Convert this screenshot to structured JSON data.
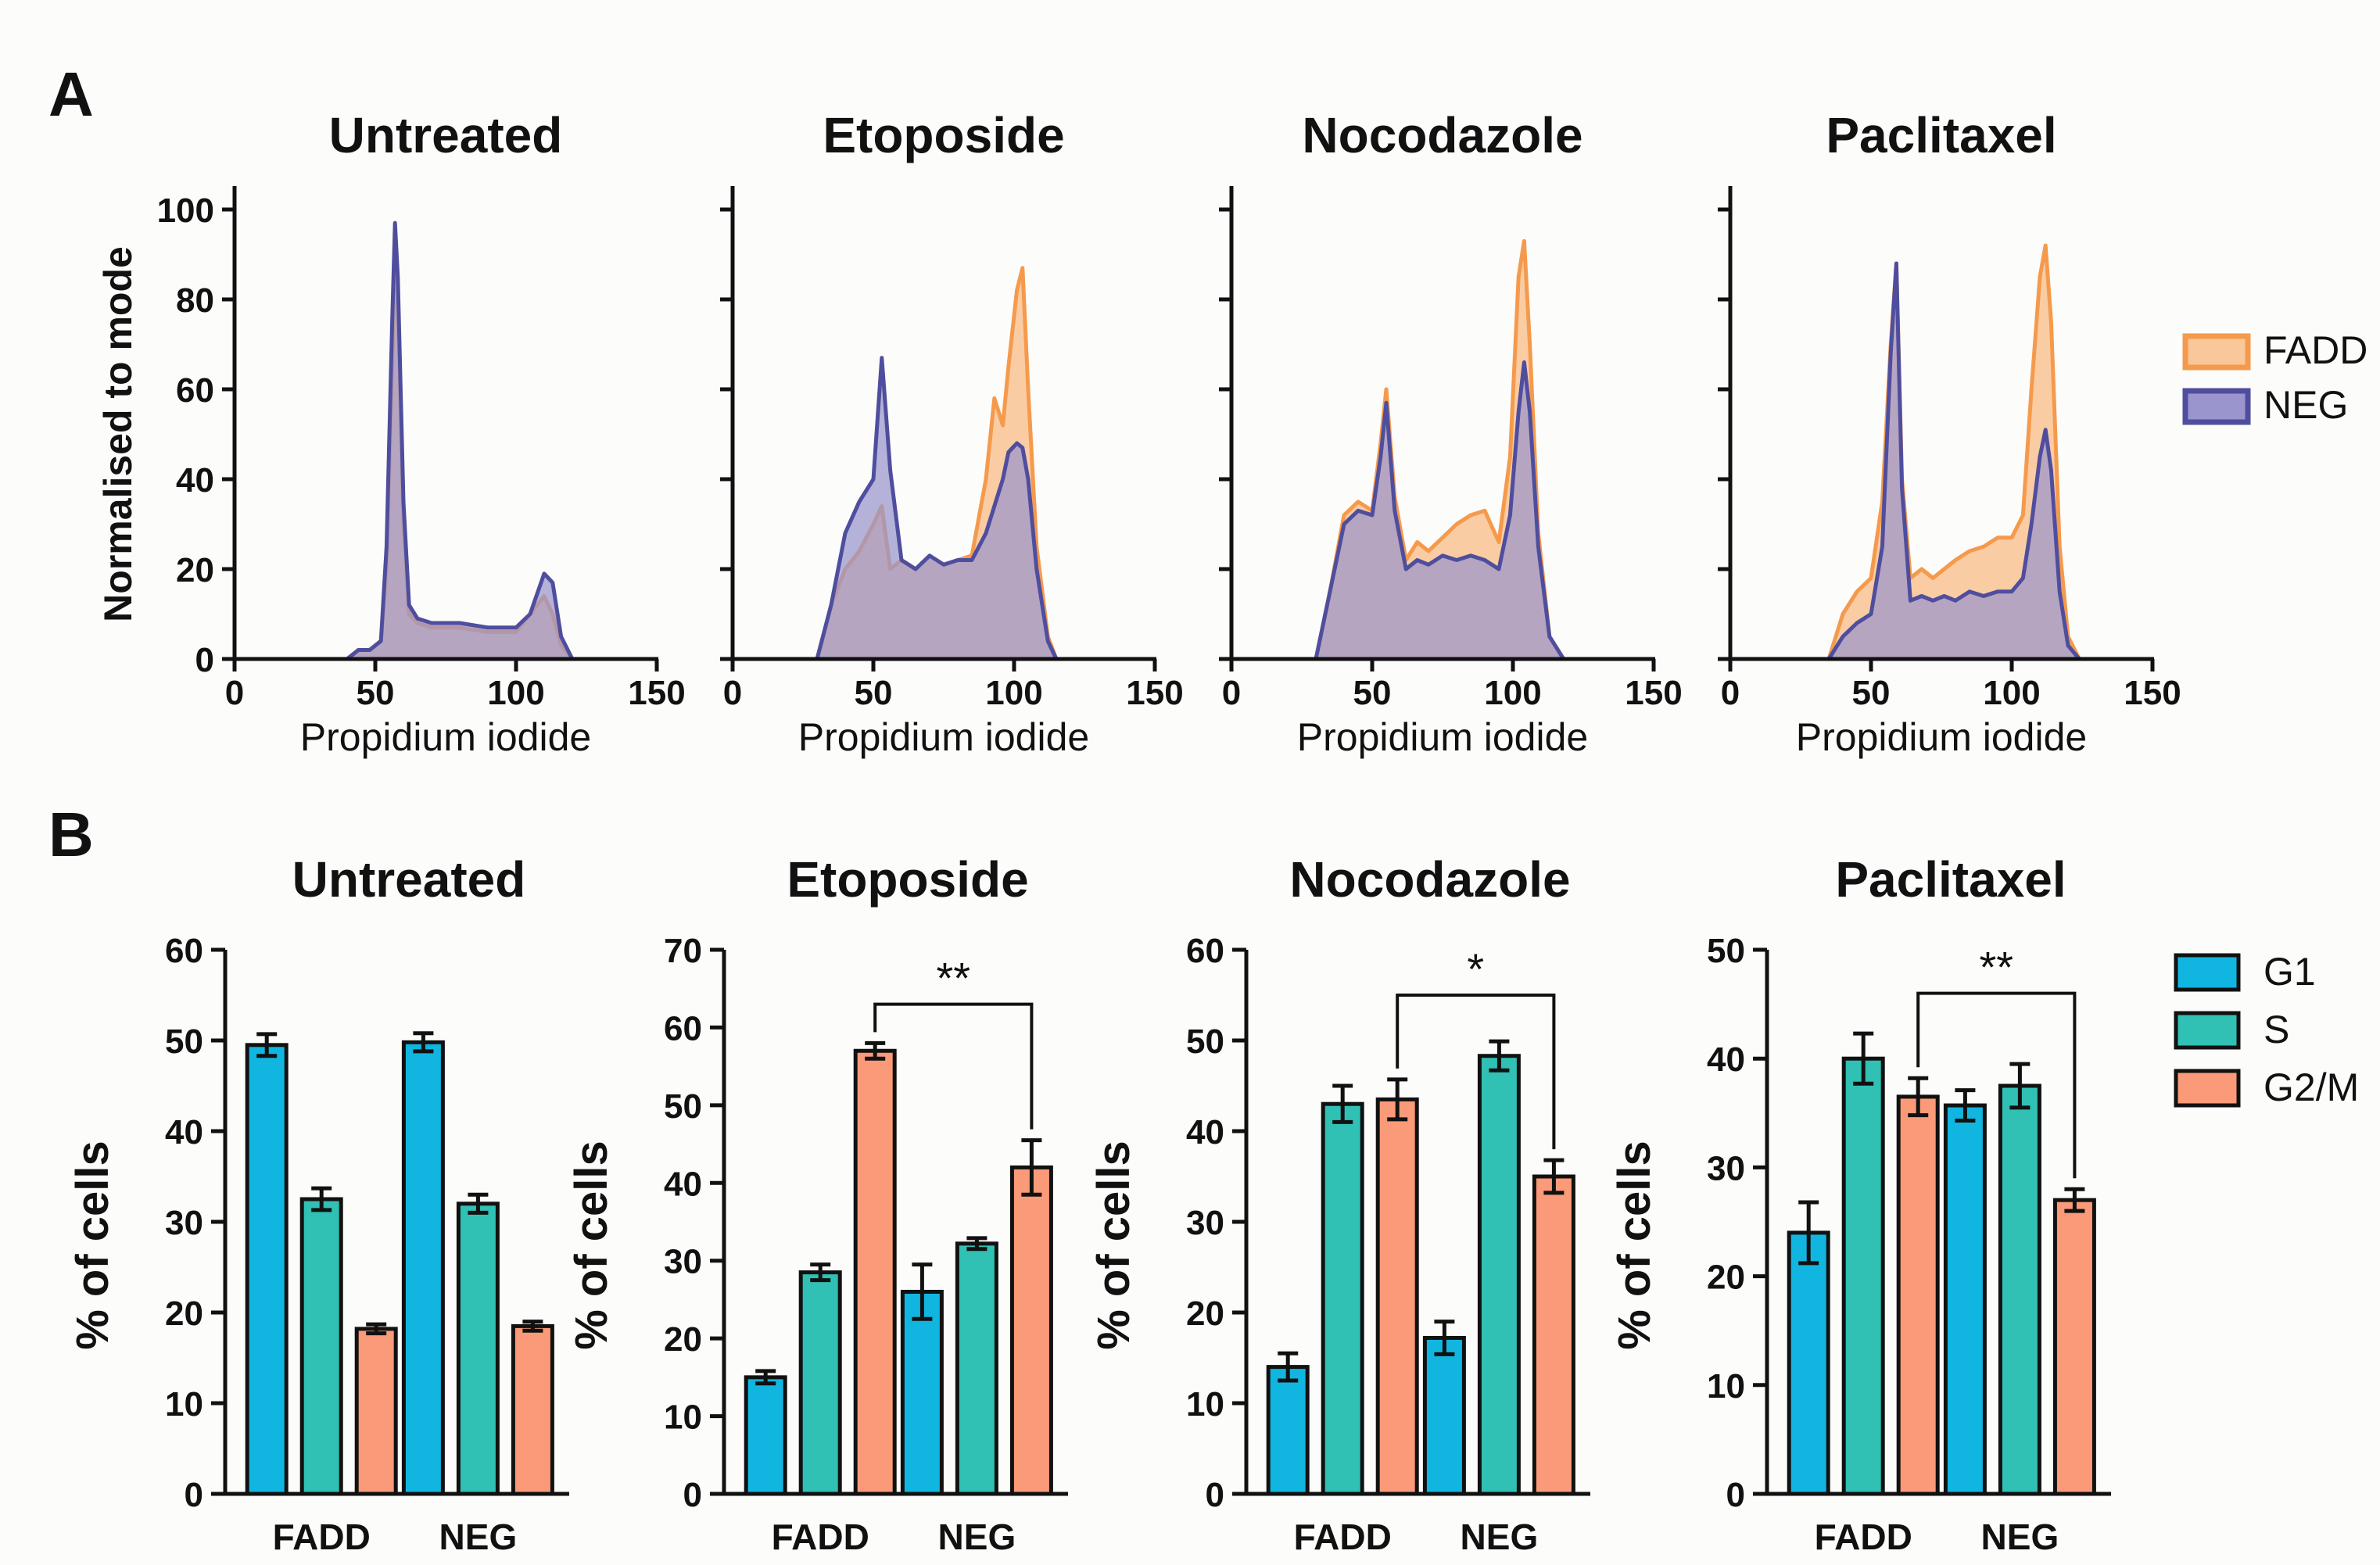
{
  "panel_labels": [
    "A",
    "B"
  ],
  "legend_a": [
    {
      "name": "FADD",
      "fill": "#f9c79a",
      "stroke": "#f59a4c"
    },
    {
      "name": "NEG",
      "fill": "#9a95cc",
      "stroke": "#4f4e9e"
    }
  ],
  "legend_b": [
    {
      "name": "G1",
      "color": "#10b6e0"
    },
    {
      "name": "S",
      "color": "#30c0b4"
    },
    {
      "name": "G2/M",
      "color": "#fa9a78"
    }
  ],
  "colors": {
    "fadd_fill": "#f9c79a",
    "fadd_line": "#f59a4c",
    "neg_fill": "#9a95cc",
    "neg_line": "#4f4e9e",
    "axis": "#111111"
  },
  "chart_data": [
    {
      "type": "area",
      "panel": "A",
      "title": "Untreated",
      "xlabel": "Propidium iodide",
      "ylabel": "Normalised to mode",
      "xlim": [
        0,
        150
      ],
      "ylim": [
        0,
        100
      ],
      "xticks": [
        0,
        50,
        100,
        150
      ],
      "yticks": [
        0,
        20,
        40,
        60,
        80,
        100
      ],
      "series": [
        {
          "name": "FADD",
          "x": [
            40,
            44,
            48,
            52,
            54,
            56,
            57,
            58,
            60,
            62,
            65,
            70,
            80,
            90,
            100,
            105,
            110,
            113,
            116,
            120
          ],
          "y": [
            0,
            2,
            2,
            4,
            20,
            65,
            88,
            80,
            30,
            10,
            8,
            7,
            7,
            6,
            6,
            10,
            14,
            10,
            3,
            0
          ]
        },
        {
          "name": "NEG",
          "x": [
            40,
            44,
            48,
            52,
            54,
            56,
            57,
            58,
            60,
            62,
            65,
            70,
            80,
            90,
            100,
            105,
            110,
            113,
            116,
            120
          ],
          "y": [
            0,
            2,
            2,
            4,
            25,
            75,
            97,
            85,
            35,
            12,
            9,
            8,
            8,
            7,
            7,
            10,
            19,
            17,
            5,
            0
          ]
        }
      ]
    },
    {
      "type": "area",
      "panel": "A",
      "title": "Etoposide",
      "xlabel": "Propidium iodide",
      "ylabel": "",
      "xlim": [
        0,
        150
      ],
      "ylim": [
        0,
        100
      ],
      "xticks": [
        0,
        50,
        100,
        150
      ],
      "yticks": [
        0,
        20,
        40,
        60,
        80,
        100
      ],
      "series": [
        {
          "name": "FADD",
          "x": [
            30,
            35,
            40,
            45,
            50,
            53,
            56,
            60,
            65,
            70,
            75,
            80,
            85,
            90,
            93,
            96,
            98,
            101,
            103,
            105,
            108,
            112,
            115
          ],
          "y": [
            0,
            12,
            20,
            24,
            30,
            34,
            20,
            22,
            20,
            23,
            21,
            22,
            23,
            40,
            58,
            52,
            65,
            82,
            87,
            60,
            25,
            5,
            0
          ]
        },
        {
          "name": "NEG",
          "x": [
            30,
            35,
            40,
            45,
            50,
            53,
            56,
            60,
            65,
            70,
            75,
            80,
            85,
            90,
            93,
            96,
            98,
            101,
            103,
            105,
            108,
            112,
            115
          ],
          "y": [
            0,
            12,
            28,
            35,
            40,
            67,
            42,
            22,
            20,
            23,
            21,
            22,
            22,
            28,
            34,
            40,
            46,
            48,
            47,
            40,
            20,
            4,
            0
          ]
        }
      ]
    },
    {
      "type": "area",
      "panel": "A",
      "title": "Nocodazole",
      "xlabel": "Propidium iodide",
      "ylabel": "",
      "xlim": [
        0,
        150
      ],
      "ylim": [
        0,
        100
      ],
      "xticks": [
        0,
        50,
        100,
        150
      ],
      "yticks": [
        0,
        20,
        40,
        60,
        80,
        100
      ],
      "series": [
        {
          "name": "FADD",
          "x": [
            30,
            35,
            40,
            45,
            50,
            53,
            55,
            58,
            62,
            66,
            70,
            75,
            80,
            85,
            90,
            95,
            99,
            102,
            104,
            106,
            109,
            113,
            118
          ],
          "y": [
            0,
            15,
            32,
            35,
            33,
            48,
            60,
            36,
            22,
            26,
            24,
            27,
            30,
            32,
            33,
            26,
            45,
            85,
            93,
            70,
            28,
            5,
            0
          ]
        },
        {
          "name": "NEG",
          "x": [
            30,
            35,
            40,
            45,
            50,
            53,
            55,
            58,
            62,
            66,
            70,
            75,
            80,
            85,
            90,
            95,
            99,
            102,
            104,
            106,
            109,
            113,
            118
          ],
          "y": [
            0,
            15,
            30,
            33,
            32,
            45,
            57,
            33,
            20,
            22,
            21,
            23,
            22,
            23,
            22,
            20,
            32,
            55,
            66,
            55,
            25,
            5,
            0
          ]
        }
      ]
    },
    {
      "type": "area",
      "panel": "A",
      "title": "Paclitaxel",
      "xlabel": "Propidium iodide",
      "ylabel": "",
      "xlim": [
        0,
        150
      ],
      "ylim": [
        0,
        100
      ],
      "xticks": [
        0,
        50,
        100,
        150
      ],
      "yticks": [
        0,
        20,
        40,
        60,
        80,
        100
      ],
      "series": [
        {
          "name": "FADD",
          "x": [
            35,
            40,
            45,
            50,
            54,
            57,
            59,
            61,
            64,
            68,
            72,
            76,
            80,
            85,
            90,
            95,
            100,
            104,
            107,
            110,
            112,
            114,
            117,
            120,
            124
          ],
          "y": [
            0,
            10,
            15,
            18,
            35,
            70,
            88,
            40,
            18,
            20,
            18,
            20,
            22,
            24,
            25,
            27,
            27,
            32,
            60,
            85,
            92,
            75,
            25,
            5,
            0
          ]
        },
        {
          "name": "NEG",
          "x": [
            35,
            40,
            45,
            50,
            54,
            57,
            59,
            61,
            64,
            68,
            72,
            76,
            80,
            85,
            90,
            95,
            100,
            104,
            107,
            110,
            112,
            114,
            117,
            120,
            124
          ],
          "y": [
            0,
            5,
            8,
            10,
            25,
            68,
            88,
            38,
            13,
            14,
            13,
            14,
            13,
            15,
            14,
            15,
            15,
            18,
            30,
            45,
            51,
            42,
            15,
            3,
            0
          ]
        }
      ]
    },
    {
      "type": "bar",
      "panel": "B",
      "title": "Untreated",
      "ylabel": "% of cells",
      "ylim": [
        0,
        60
      ],
      "yticks": [
        0,
        10,
        20,
        30,
        40,
        50,
        60
      ],
      "categories": [
        "FADD",
        "NEG"
      ],
      "series": [
        {
          "name": "G1",
          "values": [
            49.5,
            49.8
          ],
          "errors": [
            1.2,
            1.0
          ]
        },
        {
          "name": "S",
          "values": [
            32.5,
            32.0
          ],
          "errors": [
            1.2,
            1.0
          ]
        },
        {
          "name": "G2/M",
          "values": [
            18.2,
            18.5
          ],
          "errors": [
            0.5,
            0.5
          ]
        }
      ],
      "significance": null
    },
    {
      "type": "bar",
      "panel": "B",
      "title": "Etoposide",
      "ylabel": "% of cells",
      "ylim": [
        0,
        70
      ],
      "yticks": [
        0,
        10,
        20,
        30,
        40,
        50,
        60,
        70
      ],
      "categories": [
        "FADD",
        "NEG"
      ],
      "series": [
        {
          "name": "G1",
          "values": [
            15.0,
            26.0
          ],
          "errors": [
            0.8,
            3.5
          ]
        },
        {
          "name": "S",
          "values": [
            28.5,
            32.2
          ],
          "errors": [
            1.0,
            0.7
          ]
        },
        {
          "name": "G2/M",
          "values": [
            57.0,
            42.0
          ],
          "errors": [
            1.0,
            3.5
          ]
        }
      ],
      "significance": {
        "label": "**",
        "from_category": 0,
        "to_category": 1,
        "series": "G2/M",
        "level": 63
      }
    },
    {
      "type": "bar",
      "panel": "B",
      "title": "Nocodazole",
      "ylabel": "% of cells",
      "ylim": [
        0,
        60
      ],
      "yticks": [
        0,
        10,
        20,
        30,
        40,
        50,
        60
      ],
      "categories": [
        "FADD",
        "NEG"
      ],
      "series": [
        {
          "name": "G1",
          "values": [
            14.0,
            17.2
          ],
          "errors": [
            1.5,
            1.8
          ]
        },
        {
          "name": "S",
          "values": [
            43.0,
            48.3
          ],
          "errors": [
            2.0,
            1.6
          ]
        },
        {
          "name": "G2/M",
          "values": [
            43.5,
            35.0
          ],
          "errors": [
            2.2,
            1.8
          ]
        }
      ],
      "significance": {
        "label": "*",
        "from_category": 0,
        "to_category": 1,
        "series": "G2/M",
        "level": 55
      }
    },
    {
      "type": "bar",
      "panel": "B",
      "title": "Paclitaxel",
      "ylabel": "% of cells",
      "ylim": [
        0,
        50
      ],
      "yticks": [
        0,
        10,
        20,
        30,
        40,
        50
      ],
      "categories": [
        "FADD",
        "NEG"
      ],
      "series": [
        {
          "name": "G1",
          "values": [
            24.0,
            35.7
          ],
          "errors": [
            2.8,
            1.4
          ]
        },
        {
          "name": "S",
          "values": [
            40.0,
            37.5
          ],
          "errors": [
            2.3,
            2.0
          ]
        },
        {
          "name": "G2/M",
          "values": [
            36.5,
            27.0
          ],
          "errors": [
            1.7,
            1.0
          ]
        }
      ],
      "significance": {
        "label": "**",
        "from_category": 0,
        "to_category": 1,
        "series": "G2/M",
        "level": 46
      }
    }
  ]
}
